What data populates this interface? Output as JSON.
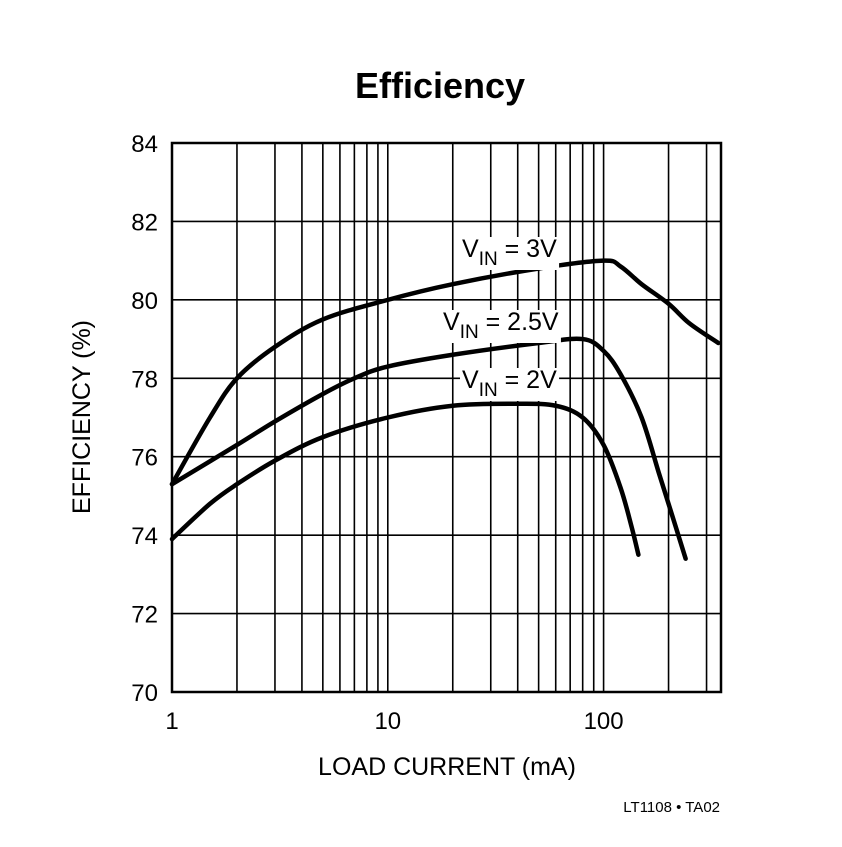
{
  "chart_data": {
    "type": "line",
    "title": "Efficiency",
    "xlabel": "LOAD CURRENT (mA)",
    "ylabel": "EFFICIENCY (%)",
    "xscale": "log",
    "xlim": [
      1,
      350
    ],
    "ylim": [
      70,
      84
    ],
    "xticks": [
      1,
      10,
      100
    ],
    "xtick_labels": [
      "1",
      "10",
      "100"
    ],
    "yticks": [
      70,
      72,
      74,
      76,
      78,
      80,
      82,
      84
    ],
    "ytick_labels": [
      "70",
      "72",
      "74",
      "76",
      "78",
      "80",
      "82",
      "84"
    ],
    "grid": true,
    "line_color": "#000000",
    "series": [
      {
        "label_main": "V",
        "label_sub": "IN",
        "label_rest": " = 3V",
        "x": [
          1,
          1.5,
          2,
          3,
          5,
          10,
          20,
          50,
          100,
          120,
          150,
          200,
          250,
          340
        ],
        "y": [
          75.3,
          77.0,
          78.0,
          78.8,
          79.5,
          80.0,
          80.4,
          80.8,
          81.0,
          80.85,
          80.4,
          79.9,
          79.4,
          78.9
        ]
      },
      {
        "label_main": "V",
        "label_sub": "IN",
        "label_rest": " = 2.5V",
        "x": [
          1,
          2,
          3,
          5,
          7,
          10,
          20,
          50,
          80,
          100,
          120,
          150,
          180,
          200,
          240
        ],
        "y": [
          75.3,
          76.3,
          76.9,
          77.6,
          78.0,
          78.3,
          78.6,
          78.9,
          79.0,
          78.7,
          78.1,
          77.0,
          75.6,
          74.8,
          73.4
        ]
      },
      {
        "label_main": "V",
        "label_sub": "IN",
        "label_rest": " = 2V",
        "x": [
          1,
          1.5,
          2,
          3,
          5,
          10,
          20,
          40,
          60,
          80,
          100,
          120,
          135,
          145
        ],
        "y": [
          73.9,
          74.8,
          75.3,
          75.9,
          76.5,
          77.0,
          77.3,
          77.35,
          77.3,
          77.0,
          76.3,
          75.2,
          74.2,
          73.5
        ]
      }
    ]
  },
  "figure_id": "LT1108 • TA02"
}
